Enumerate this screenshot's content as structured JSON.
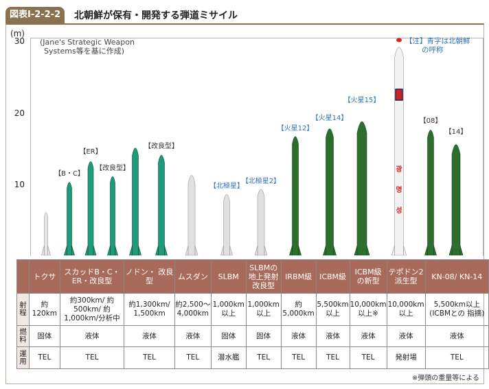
{
  "header": {
    "figure_no": "図表Ⅰ-2-2-2",
    "title": "北朝鮮が保有・開発する弾道ミサイル"
  },
  "chart": {
    "unit": "(m)",
    "yticks": [
      "30",
      "20",
      "10"
    ],
    "source": [
      "(Jane's Strategic Weapon",
      "Systems等を基に作成)"
    ],
    "note": [
      "【注】青字は北朝鮮",
      "の呼称"
    ],
    "labels": [
      {
        "text": "【B・C】",
        "blue": false
      },
      {
        "text": "【ER】",
        "blue": false
      },
      {
        "text": "【改良型】",
        "blue": false
      },
      {
        "text": "【改良型】",
        "blue": false
      },
      {
        "text": "【北極星】",
        "blue": true
      },
      {
        "text": "【北極星2】",
        "blue": true
      },
      {
        "text": "【火星12】",
        "blue": true
      },
      {
        "text": "【火星14】",
        "blue": true
      },
      {
        "text": "【火星15】",
        "blue": true
      },
      {
        "text": "【08】",
        "blue": false
      },
      {
        "text": "【14】",
        "blue": false
      }
    ],
    "missiles": [
      {
        "name": "トクサ",
        "length_m": 6.4,
        "color": "#e6e6e6"
      },
      {
        "name": "スカッドB・C",
        "length_m": 10.8,
        "color": "#1e9a7e"
      },
      {
        "name": "スカッドER",
        "length_m": 13.8,
        "color": "#1e9a7e"
      },
      {
        "name": "スカッド改良型",
        "length_m": 11.6,
        "color": "#1e9a7e"
      },
      {
        "name": "ノドン",
        "length_m": 15.8,
        "color": "#1e9a7e"
      },
      {
        "name": "ノドン改良型",
        "length_m": 14.8,
        "color": "#1e9a7e"
      },
      {
        "name": "ムスダン",
        "length_m": 12.1,
        "color": "#e0e0e0"
      },
      {
        "name": "北極星",
        "length_m": 9.2,
        "color": "#e0e0e0"
      },
      {
        "name": "北極星2",
        "length_m": 10.0,
        "color": "#e0e0e0"
      },
      {
        "name": "火星12",
        "length_m": 17.4,
        "color": "#2e6e2c"
      },
      {
        "name": "火星14",
        "length_m": 18.7,
        "color": "#2e6e2c"
      },
      {
        "name": "火星15",
        "length_m": 20.0,
        "color": "#2e6e2c"
      },
      {
        "name": "テポドン2派生型",
        "length_m": 30.3,
        "color": "#f2f2f2"
      },
      {
        "name": "KN-08",
        "length_m": 18.3,
        "color": "#2e6e2c"
      },
      {
        "name": "KN-14",
        "length_m": 16.6,
        "color": "#2e6e2c"
      }
    ]
  },
  "table": {
    "row_headers": [
      "射程",
      "燃料",
      "運用"
    ],
    "columns": [
      {
        "name": "トクサ",
        "range": "約 120km",
        "fuel": "固体",
        "ops": "TEL"
      },
      {
        "name": "スカッドB・C・ ER・改良型",
        "range": "約300km/ 約500km/ 約1,000km/分析中",
        "fuel": "液体",
        "ops": "TEL"
      },
      {
        "name": "ノドン・ 改良型",
        "range": "約1,300km/ 1,500km",
        "fuel": "液体",
        "ops": "TEL"
      },
      {
        "name": "ムスダン",
        "range": "約2,500～ 4,000km",
        "fuel": "液体",
        "ops": "TEL"
      },
      {
        "name": "SLBM",
        "range": "1,000km 以上",
        "fuel": "固体",
        "ops": "潜水艦"
      },
      {
        "name": "SLBMの 地上発射 改良型",
        "range": "1,000km 以上",
        "fuel": "固体",
        "ops": "TEL"
      },
      {
        "name": "IRBM級",
        "range": "約 5,000km",
        "fuel": "液体",
        "ops": "TEL"
      },
      {
        "name": "ICBM級",
        "range": "5,500km 以上",
        "fuel": "液体",
        "ops": "TEL"
      },
      {
        "name": "ICBM級 の新型",
        "range": "10,000km 以上※",
        "fuel": "液体",
        "ops": "TEL"
      },
      {
        "name": "テポドン2 派生型",
        "range": "10,000km 以上",
        "fuel": "液体",
        "ops": "発射場"
      },
      {
        "name": "KN-08/ KN-14",
        "range": "5,500km以上 (ICBMとの 指摘)",
        "fuel": "液体",
        "ops": "TEL"
      }
    ]
  },
  "footnote": "※弾頭の重量等による"
}
